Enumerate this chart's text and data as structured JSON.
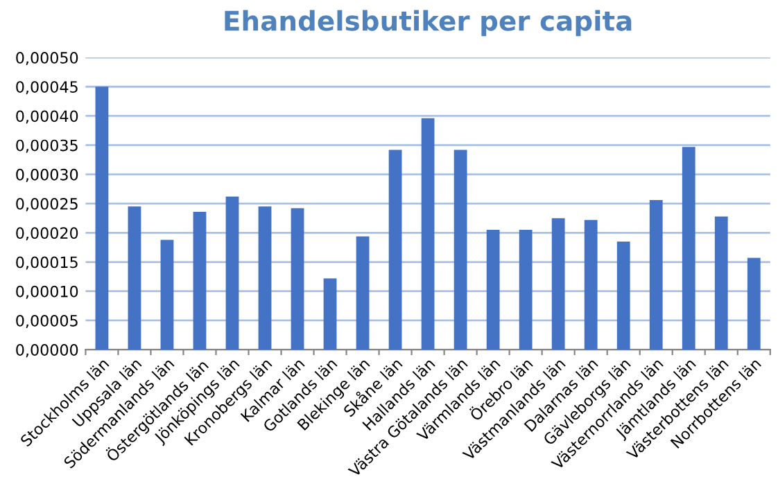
{
  "chart_data": {
    "type": "bar",
    "title": "Ehandelsbutiker per capita",
    "categories": [
      "Stockholms län",
      "Uppsala län",
      "Södermanlands län",
      "Östergötlands län",
      "Jönköpings län",
      "Kronobergs län",
      "Kalmar län",
      "Gotlands län",
      "Blekinge län",
      "Skåne län",
      "Hallands län",
      "Västra Götalands län",
      "Värmlands län",
      "Örebro län",
      "Västmanlands län",
      "Dalarnas län",
      "Gävleborgs län",
      "Västernorrlands län",
      "Jämtlands län",
      "Västerbottens län",
      "Norrbottens län"
    ],
    "values": [
      0.00045,
      0.000245,
      0.000188,
      0.000236,
      0.000262,
      0.000245,
      0.000242,
      0.000122,
      0.000194,
      0.000342,
      0.000396,
      0.000342,
      0.000205,
      0.000205,
      0.000225,
      0.000222,
      0.000185,
      0.000256,
      0.000347,
      0.000228,
      0.000157
    ],
    "color": "#4472c4",
    "ylim": [
      0,
      0.0005
    ],
    "yticks": [
      {
        "value": 0,
        "label": "0,00000"
      },
      {
        "value": 5e-05,
        "label": "0,00005"
      },
      {
        "value": 0.0001,
        "label": "0,00010"
      },
      {
        "value": 0.00015,
        "label": "0,00015"
      },
      {
        "value": 0.0002,
        "label": "0,00020"
      },
      {
        "value": 0.00025,
        "label": "0,00025"
      },
      {
        "value": 0.0003,
        "label": "0,00030"
      },
      {
        "value": 0.00035,
        "label": "0,00035"
      },
      {
        "value": 0.0004,
        "label": "0,00040"
      },
      {
        "value": 0.00045,
        "label": "0,00045"
      },
      {
        "value": 0.0005,
        "label": "0,00050"
      }
    ],
    "grid": "y"
  }
}
